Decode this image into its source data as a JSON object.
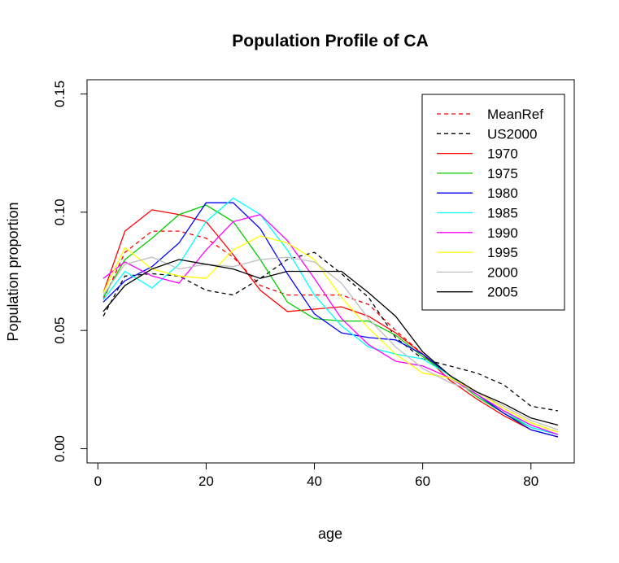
{
  "chart_data": {
    "type": "line",
    "title": "Population Profile of CA",
    "xlabel": "age",
    "ylabel": "Population proportion",
    "xlim": [
      -2,
      88
    ],
    "ylim": [
      -0.006,
      0.156
    ],
    "x_ticks": [
      0,
      20,
      40,
      60,
      80
    ],
    "x_tick_labels": [
      "0",
      "20",
      "40",
      "60",
      "80"
    ],
    "y_ticks": [
      0.0,
      0.05,
      0.1,
      0.15
    ],
    "y_tick_labels": [
      "0.00",
      "0.05",
      "0.10",
      "0.15"
    ],
    "grid": false,
    "legend_position": "top-right",
    "x": [
      1,
      5,
      10,
      15,
      20,
      25,
      30,
      35,
      40,
      45,
      50,
      55,
      60,
      65,
      70,
      75,
      80,
      85
    ],
    "series": [
      {
        "name": "MeanRef",
        "color": "#ff0000",
        "dashed": true,
        "values": [
          0.063,
          0.083,
          0.092,
          0.092,
          0.089,
          0.081,
          0.069,
          0.065,
          0.065,
          0.065,
          0.061,
          0.05,
          0.04,
          0.031,
          0.024,
          0.017,
          0.011,
          0.007
        ]
      },
      {
        "name": "US2000",
        "color": "#000000",
        "dashed": true,
        "values": [
          0.056,
          0.073,
          0.074,
          0.073,
          0.067,
          0.065,
          0.072,
          0.08,
          0.083,
          0.074,
          0.064,
          0.047,
          0.038,
          0.035,
          0.032,
          0.027,
          0.018,
          0.016
        ]
      },
      {
        "name": "1970",
        "color": "#ff0000",
        "dashed": false,
        "values": [
          0.066,
          0.092,
          0.101,
          0.099,
          0.096,
          0.082,
          0.067,
          0.058,
          0.059,
          0.06,
          0.056,
          0.049,
          0.04,
          0.029,
          0.021,
          0.014,
          0.008,
          0.005
        ]
      },
      {
        "name": "1975",
        "color": "#00cd00",
        "dashed": false,
        "values": [
          0.064,
          0.08,
          0.089,
          0.099,
          0.103,
          0.096,
          0.08,
          0.062,
          0.055,
          0.054,
          0.054,
          0.048,
          0.039,
          0.031,
          0.022,
          0.015,
          0.009,
          0.006
        ]
      },
      {
        "name": "1980",
        "color": "#0000ff",
        "dashed": false,
        "values": [
          0.062,
          0.071,
          0.077,
          0.087,
          0.104,
          0.104,
          0.093,
          0.074,
          0.057,
          0.049,
          0.047,
          0.046,
          0.04,
          0.031,
          0.023,
          0.015,
          0.008,
          0.005
        ]
      },
      {
        "name": "1985",
        "color": "#00ffff",
        "dashed": false,
        "values": [
          0.063,
          0.075,
          0.068,
          0.078,
          0.096,
          0.106,
          0.099,
          0.084,
          0.065,
          0.052,
          0.043,
          0.04,
          0.038,
          0.031,
          0.023,
          0.016,
          0.009,
          0.006
        ]
      },
      {
        "name": "1990",
        "color": "#ff00ff",
        "dashed": false,
        "values": [
          0.072,
          0.079,
          0.073,
          0.07,
          0.084,
          0.096,
          0.099,
          0.088,
          0.072,
          0.055,
          0.044,
          0.037,
          0.035,
          0.03,
          0.023,
          0.016,
          0.01,
          0.006
        ]
      },
      {
        "name": "1995",
        "color": "#ffff00",
        "dashed": false,
        "values": [
          0.066,
          0.085,
          0.076,
          0.073,
          0.072,
          0.084,
          0.09,
          0.087,
          0.08,
          0.064,
          0.051,
          0.04,
          0.032,
          0.03,
          0.024,
          0.017,
          0.011,
          0.007
        ]
      },
      {
        "name": "2000",
        "color": "#bebebe",
        "dashed": false,
        "values": [
          0.065,
          0.078,
          0.081,
          0.076,
          0.078,
          0.077,
          0.08,
          0.081,
          0.079,
          0.07,
          0.055,
          0.043,
          0.034,
          0.028,
          0.024,
          0.018,
          0.012,
          0.008
        ]
      },
      {
        "name": "2005",
        "color": "#000000",
        "dashed": false,
        "values": [
          0.058,
          0.069,
          0.076,
          0.08,
          0.078,
          0.076,
          0.072,
          0.075,
          0.075,
          0.075,
          0.066,
          0.056,
          0.041,
          0.031,
          0.024,
          0.019,
          0.013,
          0.01
        ]
      }
    ]
  }
}
